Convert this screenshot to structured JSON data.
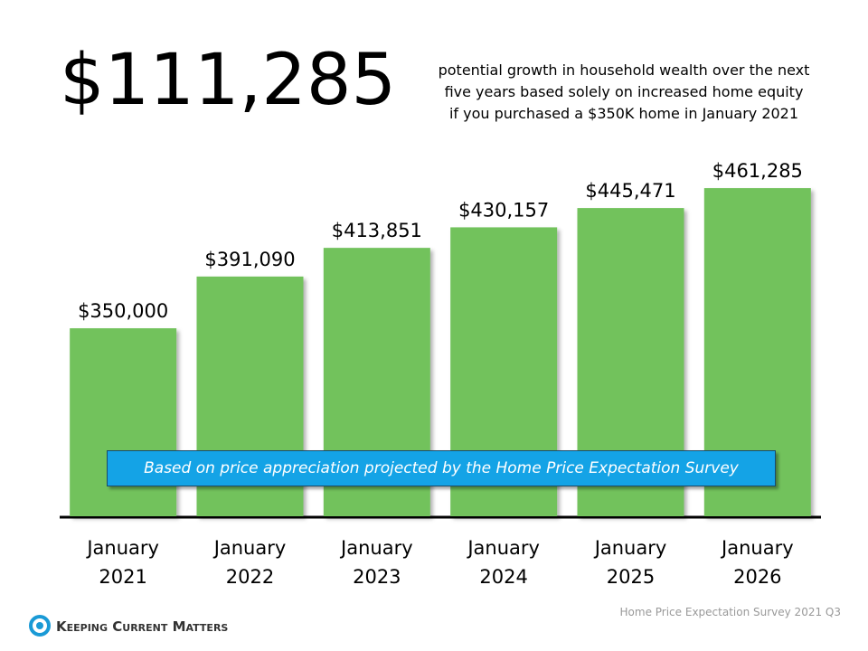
{
  "chart_data": {
    "type": "bar",
    "title": "$111,285",
    "subtitle": [
      "potential growth in household wealth over the next",
      "five years based solely on increased home equity",
      "if you purchased a $350K home in January 2021"
    ],
    "categories": [
      "January 2021",
      "January 2022",
      "January 2023",
      "January 2024",
      "January 2025",
      "January 2026"
    ],
    "values": [
      350000,
      391090,
      413851,
      430157,
      445471,
      461285
    ],
    "value_labels": [
      "$350,000",
      "$391,090",
      "$413,851",
      "$430,157",
      "$445,471",
      "$461,285"
    ],
    "color": "#72c25c",
    "ylim": [
      200000,
      480000
    ],
    "annotation": "Based on price appreciation projected by the Home Price Expectation Survey",
    "source": "Home Price Expectation Survey 2021 Q3",
    "brand": "Keeping Current Matters"
  }
}
